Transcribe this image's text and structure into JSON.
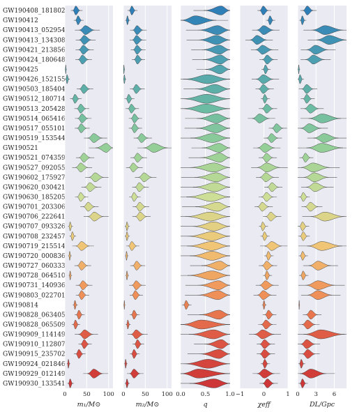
{
  "chart_data": {
    "type": "violin",
    "events": [
      "GW190408_181802",
      "GW190412",
      "GW190413_052954",
      "GW190413_134308",
      "GW190421_213856",
      "GW190424_180648",
      "GW190425",
      "GW190426_152155",
      "GW190503_185404",
      "GW190512_180714",
      "GW190513_205428",
      "GW190514_065416",
      "GW190517_055101",
      "GW190519_153544",
      "GW190521",
      "GW190521_074359",
      "GW190527_092055",
      "GW190602_175927",
      "GW190620_030421",
      "GW190630_185205",
      "GW190701_203306",
      "GW190706_222641",
      "GW190707_093326",
      "GW190708_232457",
      "GW190719_215514",
      "GW190720_000836",
      "GW190727_060333",
      "GW190728_064510",
      "GW190731_140936",
      "GW190803_022701",
      "GW190814",
      "GW190828_063405",
      "GW190828_065509",
      "GW190909_114149",
      "GW190910_112807",
      "GW190915_235702",
      "GW190924_021846",
      "GW190929_012149",
      "GW190930_133541"
    ],
    "panels": [
      {
        "xlabel": "m₁/M⊙",
        "ticks": [
          "0",
          "50",
          "100"
        ],
        "xlim": [
          0,
          110
        ],
        "medians": [
          25,
          30,
          47,
          44,
          42,
          40,
          2,
          5,
          43,
          23,
          36,
          39,
          37,
          66,
          95,
          43,
          36,
          69,
          57,
          36,
          53,
          67,
          12,
          17,
          38,
          11,
          38,
          12,
          41,
          38,
          23,
          32,
          24,
          45,
          44,
          32,
          8,
          66,
          12
        ],
        "widths": [
          7,
          6,
          15,
          12,
          11,
          10,
          1,
          3,
          10,
          7,
          9,
          10,
          9,
          14,
          25,
          11,
          12,
          14,
          12,
          8,
          11,
          15,
          3,
          4,
          13,
          2,
          10,
          2,
          10,
          8,
          3,
          6,
          5,
          14,
          8,
          7,
          2,
          15,
          4
        ]
      },
      {
        "xlabel": "m₂/M⊙",
        "ticks": [
          "0",
          "50",
          "100"
        ],
        "xlim": [
          0,
          110
        ],
        "medians": [
          19,
          9,
          31,
          30,
          31,
          32,
          1,
          2,
          29,
          12,
          18,
          25,
          25,
          41,
          69,
          32,
          22,
          47,
          36,
          24,
          37,
          38,
          8,
          8,
          19,
          7,
          30,
          8,
          29,
          27,
          2,
          24,
          10,
          29,
          32,
          24,
          5,
          24,
          8
        ],
        "widths": [
          6,
          3,
          10,
          10,
          9,
          8,
          1,
          2,
          9,
          6,
          8,
          8,
          8,
          11,
          23,
          10,
          10,
          13,
          10,
          7,
          10,
          11,
          3,
          3,
          8,
          2,
          9,
          2,
          10,
          8,
          1,
          6,
          3,
          12,
          7,
          6,
          2,
          10,
          3
        ]
      },
      {
        "xlabel": "q",
        "ticks": [
          "0.0",
          "0.5",
          "1.0"
        ],
        "xlim": [
          0,
          1
        ],
        "medians": [
          0.82,
          0.3,
          0.75,
          0.73,
          0.79,
          0.81,
          0.8,
          0.55,
          0.7,
          0.53,
          0.52,
          0.73,
          0.72,
          0.65,
          0.78,
          0.8,
          0.68,
          0.73,
          0.7,
          0.62,
          0.75,
          0.6,
          0.68,
          0.64,
          0.63,
          0.64,
          0.8,
          0.64,
          0.77,
          0.76,
          0.11,
          0.78,
          0.42,
          0.67,
          0.83,
          0.78,
          0.56,
          0.36,
          0.68
        ],
        "widths": [
          0.35,
          0.3,
          0.4,
          0.38,
          0.36,
          0.36,
          0.3,
          0.5,
          0.4,
          0.5,
          0.5,
          0.4,
          0.4,
          0.45,
          0.35,
          0.4,
          0.5,
          0.45,
          0.45,
          0.5,
          0.45,
          0.5,
          0.45,
          0.5,
          0.5,
          0.45,
          0.38,
          0.5,
          0.42,
          0.42,
          0.05,
          0.4,
          0.55,
          0.5,
          0.35,
          0.4,
          0.5,
          0.5,
          0.5
        ]
      },
      {
        "xlabel": "χeff",
        "ticks": [
          "−1",
          "0",
          "1"
        ],
        "xlim": [
          -1,
          1
        ],
        "medians": [
          -0.03,
          0.25,
          -0.01,
          -0.29,
          -0.06,
          0.13,
          0.06,
          -0.03,
          -0.03,
          0.03,
          0.11,
          -0.19,
          0.52,
          0.31,
          0.03,
          0.1,
          0.11,
          0.07,
          0.33,
          0.1,
          -0.07,
          0.28,
          -0.05,
          0.02,
          0.32,
          0.18,
          0.11,
          0.12,
          0.06,
          -0.03,
          0.0,
          0.19,
          0.08,
          -0.06,
          0.02,
          0.02,
          0.03,
          0.01,
          0.14
        ],
        "widths": [
          0.15,
          0.1,
          0.3,
          0.3,
          0.3,
          0.2,
          0.1,
          0.3,
          0.2,
          0.1,
          0.2,
          0.3,
          0.2,
          0.2,
          0.3,
          0.2,
          0.4,
          0.25,
          0.2,
          0.2,
          0.2,
          0.2,
          0.1,
          0.1,
          0.3,
          0.1,
          0.2,
          0.1,
          0.25,
          0.25,
          0.05,
          0.15,
          0.2,
          0.35,
          0.2,
          0.2,
          0.1,
          0.3,
          0.2
        ]
      },
      {
        "xlabel": "DL/Gpc",
        "ticks": [
          "0",
          "3",
          "6"
        ],
        "xlim": [
          0,
          8
        ],
        "medians": [
          1.55,
          0.74,
          4.45,
          5.15,
          2.9,
          2.55,
          0.16,
          0.37,
          1.45,
          1.46,
          2.06,
          3.98,
          1.86,
          4.29,
          3.92,
          1.24,
          2.49,
          2.69,
          2.81,
          0.89,
          2.06,
          4.42,
          0.77,
          0.88,
          3.94,
          0.79,
          3.3,
          0.87,
          3.3,
          3.27,
          0.24,
          2.13,
          1.6,
          3.77,
          1.46,
          1.62,
          0.57,
          2.13,
          0.76
        ],
        "widths": [
          0.7,
          0.3,
          2.2,
          2.2,
          1.5,
          1.3,
          0.1,
          0.3,
          0.8,
          0.6,
          1.0,
          2.2,
          1.4,
          1.7,
          2.5,
          0.6,
          2.0,
          1.7,
          1.4,
          0.5,
          0.9,
          2.3,
          0.5,
          0.5,
          2.4,
          0.4,
          1.5,
          0.4,
          2.0,
          1.7,
          0.05,
          0.8,
          0.9,
          2.8,
          1.0,
          0.9,
          0.3,
          1.8,
          0.4
        ]
      }
    ]
  }
}
